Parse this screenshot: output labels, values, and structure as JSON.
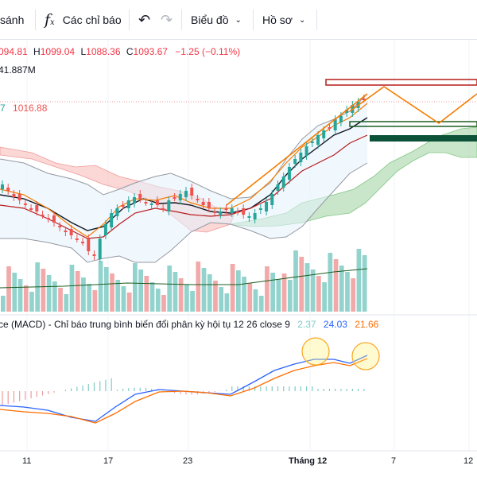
{
  "toolbar": {
    "compare_label": "sánh",
    "indicators_label": "Các chỉ báo",
    "chart_label": "Biểu đồ",
    "profile_label": "Hồ sơ",
    "undo_icon": "undo-icon",
    "redo_icon": "redo-icon",
    "fx_icon": "indicators-fx-icon",
    "chevron_icon": "chevron-down-icon"
  },
  "legend": {
    "open_value": "094.81",
    "high_label": "H",
    "high_value": "1099.04",
    "low_label": "L",
    "low_value": "1088.36",
    "close_label": "C",
    "close_value": "1093.67",
    "change": "−1.25 (−0.11%)",
    "volume": "41.887M",
    "ma_left": "7",
    "ma_value": "1016.88"
  },
  "macd": {
    "title": "ce (MACD) - Chỉ báo trung bình biến đổi phân kỳ hội tụ 12 26 close 9",
    "hist_value": "2.37",
    "macd_value": "24.03",
    "signal_value": "21.66"
  },
  "time_axis": {
    "labels": [
      "11",
      "17",
      "23",
      "Tháng 12",
      "7",
      "12"
    ]
  },
  "colors": {
    "up": "#26a69a",
    "down": "#ef5350",
    "bb": "#9598a1",
    "ma_orange": "#f57c00",
    "ma_black": "#131722",
    "ma_brown": "#b71c1c",
    "macd_line": "#2962ff",
    "signal_line": "#ff6d00"
  }
}
